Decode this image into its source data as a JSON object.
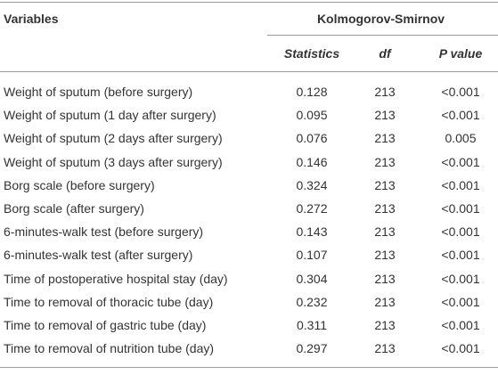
{
  "table": {
    "header": {
      "variables": "Variables",
      "group": "Kolmogorov-Smirnov",
      "columns": [
        "Statistics",
        "df",
        "P value"
      ]
    },
    "rows": [
      [
        "Weight of sputum (before surgery)",
        "0.128",
        "213",
        "<0.001"
      ],
      [
        "Weight of sputum (1 day after surgery)",
        "0.095",
        "213",
        "<0.001"
      ],
      [
        "Weight of sputum (2 days after surgery)",
        "0.076",
        "213",
        "0.005"
      ],
      [
        "Weight of sputum (3 days after surgery)",
        "0.146",
        "213",
        "<0.001"
      ],
      [
        "Borg scale (before surgery)",
        "0.324",
        "213",
        "<0.001"
      ],
      [
        "Borg scale (after surgery)",
        "0.272",
        "213",
        "<0.001"
      ],
      [
        "6-minutes-walk test (before surgery)",
        "0.143",
        "213",
        "<0.001"
      ],
      [
        "6-minutes-walk test (after surgery)",
        "0.107",
        "213",
        "<0.001"
      ],
      [
        "Time of postoperative hospital stay (day)",
        "0.304",
        "213",
        "<0.001"
      ],
      [
        "Time to removal of thoracic tube (day)",
        "0.232",
        "213",
        "<0.001"
      ],
      [
        "Time to removal of gastric tube (day)",
        "0.311",
        "213",
        "<0.001"
      ],
      [
        "Time to removal of nutrition tube (day)",
        "0.297",
        "213",
        "<0.001"
      ]
    ]
  }
}
